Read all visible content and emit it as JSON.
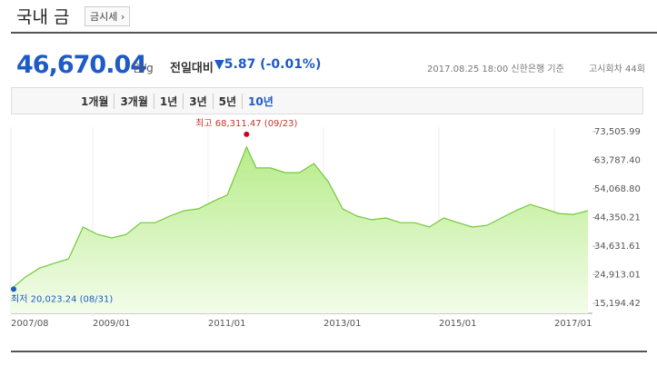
{
  "header": {
    "title": "국내 금",
    "button": "금시세 ›"
  },
  "quote": {
    "price": "46,670.04",
    "unit": "원/g",
    "compare_label": "전일대비",
    "change": "▼5.87 (-0.01%)",
    "date": "2017.08.25 18:00 신한은행 기준",
    "round": "고시회차 44회"
  },
  "tabs": [
    "1개월",
    "3개월",
    "1년",
    "3년",
    "5년",
    "10년"
  ],
  "selected_tab": 5,
  "chart_data": {
    "type": "line",
    "x": [
      "2007/08",
      "2007/11",
      "2008/02",
      "2008/05",
      "2008/08",
      "2008/11",
      "2009/02",
      "2009/05",
      "2009/08",
      "2009/11",
      "2010/02",
      "2010/05",
      "2010/08",
      "2010/11",
      "2011/02",
      "2011/05",
      "2011/08",
      "2011/09",
      "2011/11",
      "2012/02",
      "2012/05",
      "2012/08",
      "2012/11",
      "2013/02",
      "2013/05",
      "2013/08",
      "2013/11",
      "2014/02",
      "2014/05",
      "2014/08",
      "2014/11",
      "2015/02",
      "2015/05",
      "2015/08",
      "2015/11",
      "2016/02",
      "2016/05",
      "2016/08",
      "2016/11",
      "2017/02",
      "2017/05",
      "2017/08"
    ],
    "series": [
      {
        "name": "국내 금",
        "color": "#74c83a",
        "values": [
          20023.24,
          24100,
          27200,
          28800,
          30300,
          41100,
          38600,
          37400,
          38600,
          42600,
          42600,
          44800,
          46700,
          47300,
          49800,
          52000,
          64200,
          68311.47,
          61200,
          61200,
          59600,
          59600,
          62700,
          56500,
          47300,
          44800,
          43600,
          44200,
          42600,
          42600,
          41100,
          44200,
          42600,
          41100,
          41700,
          44200,
          46700,
          48800,
          47300,
          45700,
          45400,
          46670.04
        ]
      }
    ],
    "ylim": [
      15194.42,
      73505.99
    ],
    "yticks": [
      {
        "value": 15194.42,
        "label": "15,194.42"
      },
      {
        "value": 24913.01,
        "label": "24,913.01"
      },
      {
        "value": 34631.61,
        "label": "34,631.61"
      },
      {
        "value": 44350.21,
        "label": "44,350.21"
      },
      {
        "value": 54068.8,
        "label": "54,068.80"
      },
      {
        "value": 63787.4,
        "label": "63,787.40"
      },
      {
        "value": 73505.99,
        "label": "73,505.99"
      }
    ],
    "xticks": [
      "2007/08",
      "2009/01",
      "2011/01",
      "2013/01",
      "2015/01",
      "2017/01"
    ],
    "annotations": {
      "max": "최고 68,311.47 (09/23)",
      "min": "최저 20,023.24 (08/31)"
    }
  }
}
